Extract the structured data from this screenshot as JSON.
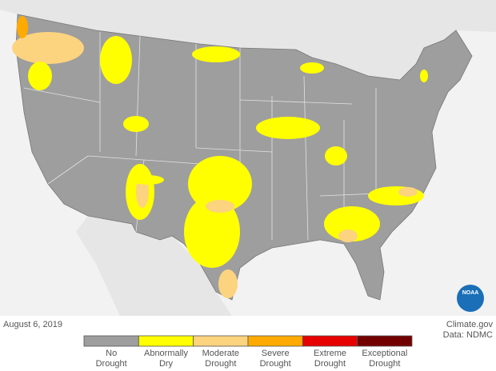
{
  "map_date": "August 6, 2019",
  "credits": [
    "Climate.gov",
    "Data: NDMC"
  ],
  "logo": "NOAA",
  "legend": [
    {
      "label": [
        "No",
        "Drought"
      ],
      "color": "#9e9e9e"
    },
    {
      "label": [
        "Abnormally",
        "Dry"
      ],
      "color": "#ffff00"
    },
    {
      "label": [
        "Moderate",
        "Drought"
      ],
      "color": "#fcd37f"
    },
    {
      "label": [
        "Severe",
        "Drought"
      ],
      "color": "#ffaa00"
    },
    {
      "label": [
        "Extreme",
        "Drought"
      ],
      "color": "#e60000"
    },
    {
      "label": [
        "Exceptional",
        "Drought"
      ],
      "color": "#730000"
    }
  ]
}
